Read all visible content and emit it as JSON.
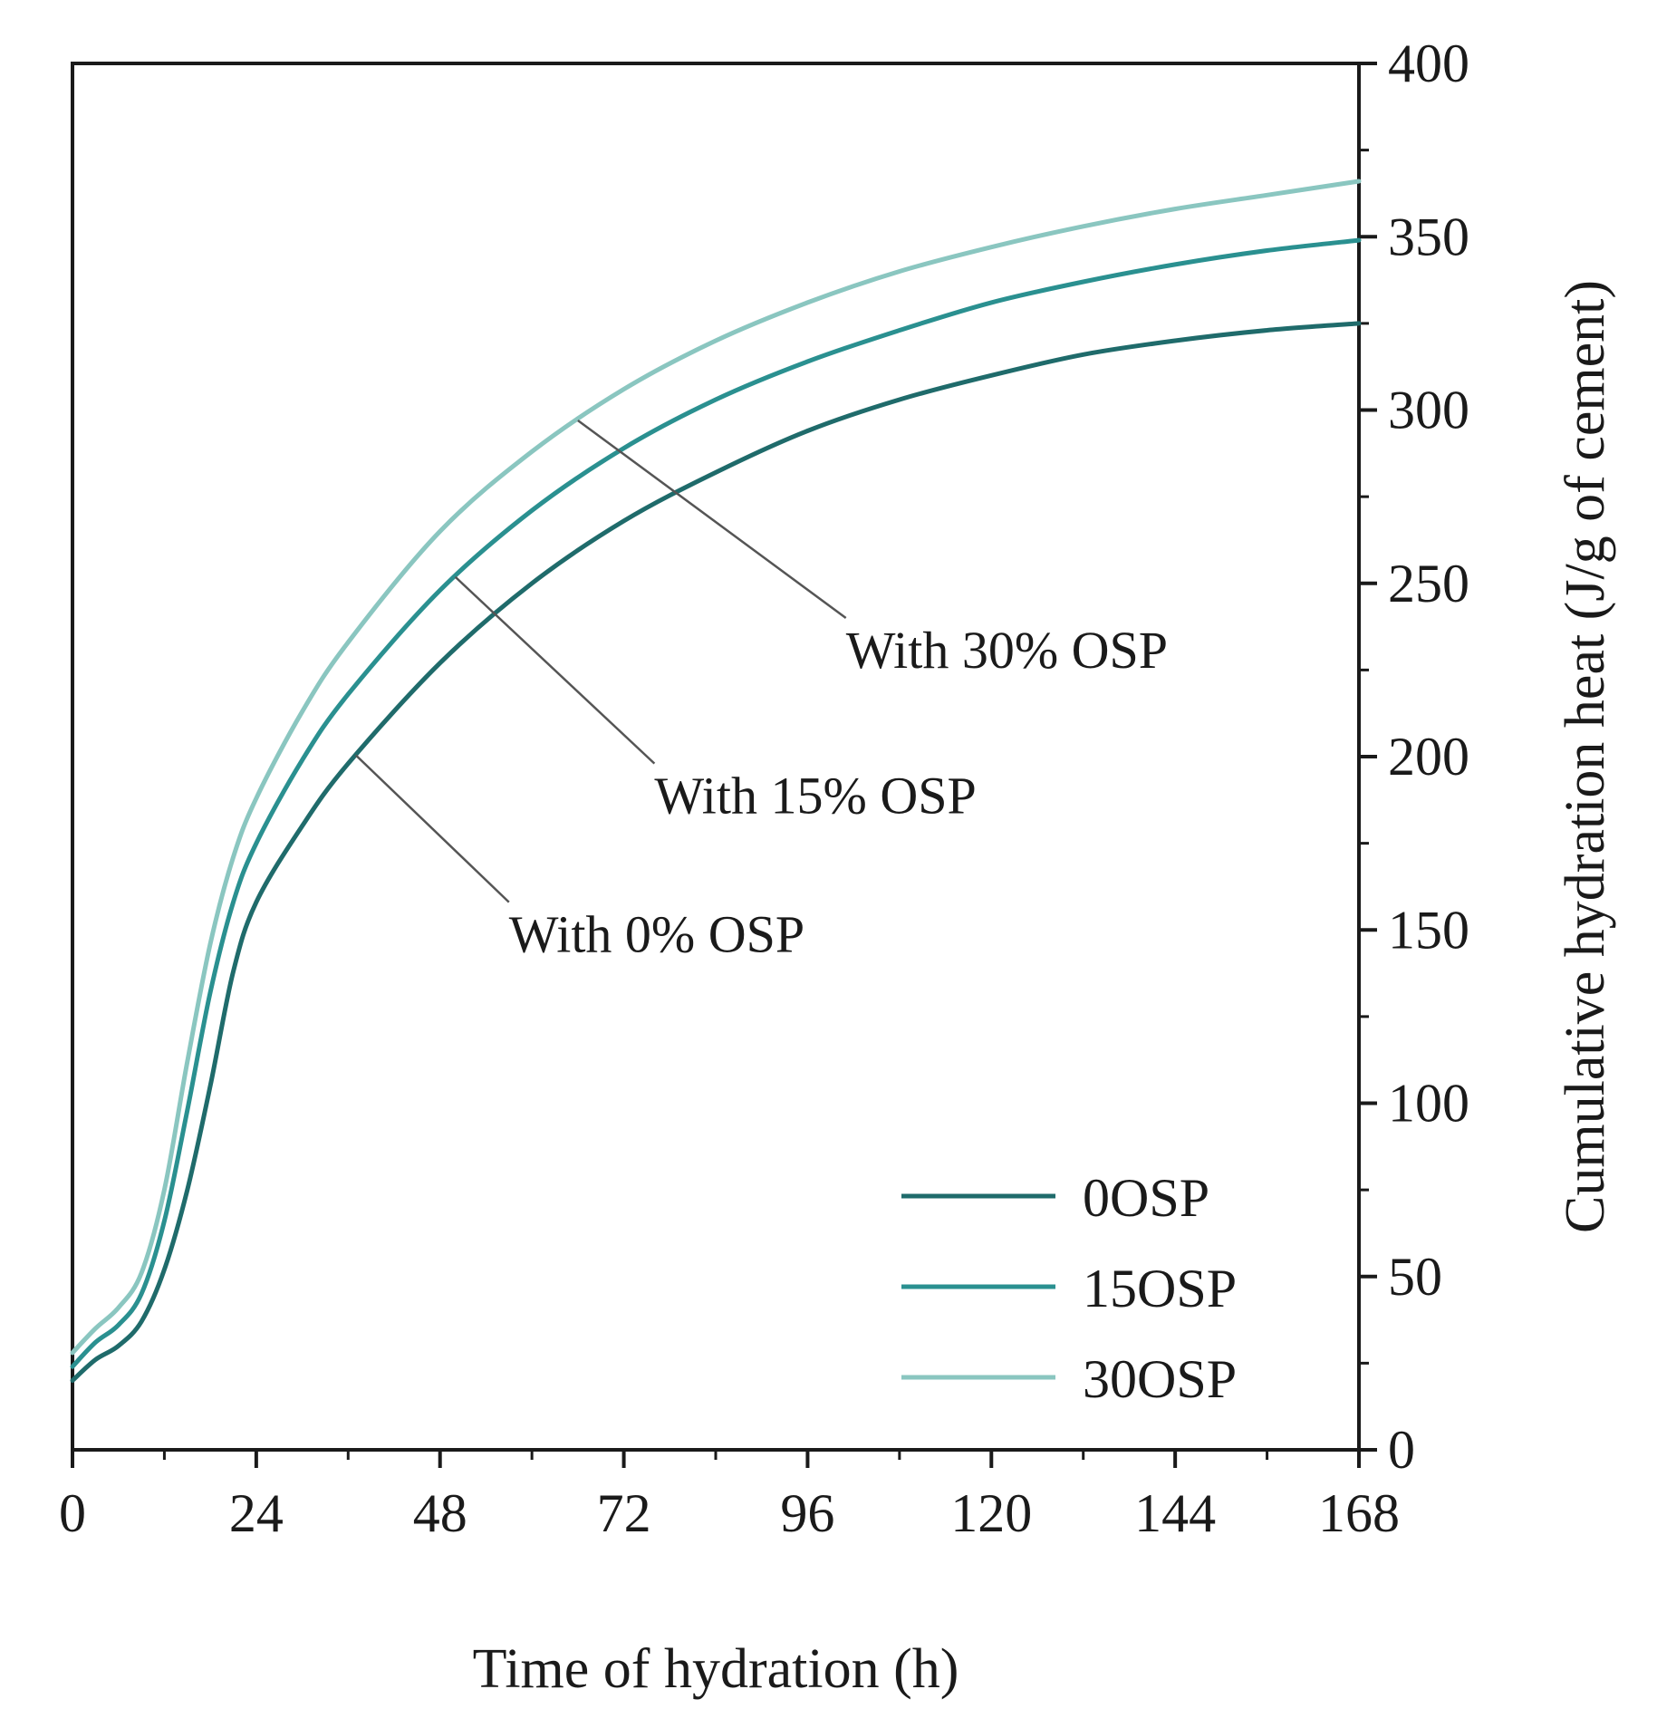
{
  "chart_data": {
    "type": "line",
    "title": "",
    "xlabel": "Time of hydration (h)",
    "ylabel": "Cumulative hydration heat (J/g of cement)",
    "xlim": [
      0,
      168
    ],
    "ylim": [
      0,
      400
    ],
    "x_ticks": [
      0,
      24,
      48,
      72,
      96,
      120,
      144,
      168
    ],
    "y_ticks": [
      0,
      50,
      100,
      150,
      200,
      250,
      300,
      350,
      400
    ],
    "y_axis_side": "right",
    "grid": false,
    "legend_position": "bottom-right",
    "series": [
      {
        "name": "0OSP",
        "color": "#1f6b6b",
        "x": [
          0,
          3,
          6,
          9,
          12,
          15,
          18,
          21,
          24,
          30,
          36,
          48,
          60,
          72,
          84,
          96,
          108,
          120,
          132,
          144,
          156,
          168
        ],
        "y": [
          20,
          26,
          30,
          37,
          52,
          75,
          105,
          138,
          158,
          180,
          198,
          227,
          250,
          268,
          282,
          294,
          303,
          310,
          316,
          320,
          323,
          325
        ]
      },
      {
        "name": "15OSP",
        "color": "#2a9090",
        "x": [
          0,
          3,
          6,
          9,
          12,
          15,
          18,
          21,
          24,
          30,
          36,
          48,
          60,
          72,
          84,
          96,
          108,
          120,
          132,
          144,
          156,
          168
        ],
        "y": [
          24,
          31,
          36,
          45,
          66,
          98,
          132,
          158,
          175,
          199,
          218,
          248,
          271,
          289,
          303,
          314,
          323,
          331,
          337,
          342,
          346,
          349
        ]
      },
      {
        "name": "30OSP",
        "color": "#8ac6c0",
        "x": [
          0,
          3,
          6,
          9,
          12,
          15,
          18,
          21,
          24,
          30,
          36,
          48,
          60,
          72,
          84,
          96,
          108,
          120,
          132,
          144,
          156,
          168
        ],
        "y": [
          28,
          35,
          41,
          51,
          75,
          112,
          146,
          171,
          188,
          213,
          233,
          265,
          288,
          306,
          320,
          331,
          340,
          347,
          353,
          358,
          362,
          366
        ]
      }
    ],
    "annotations": [
      {
        "text": "With 30% OSP",
        "target_series": "30OSP",
        "target_x": 66,
        "text_x": 101,
        "text_y": 240
      },
      {
        "text": "With 15% OSP",
        "target_series": "15OSP",
        "target_x": 50,
        "text_x": 76,
        "text_y": 198
      },
      {
        "text": "With 0% OSP",
        "target_series": "0OSP",
        "target_x": 37,
        "text_x": 57,
        "text_y": 158
      }
    ]
  }
}
